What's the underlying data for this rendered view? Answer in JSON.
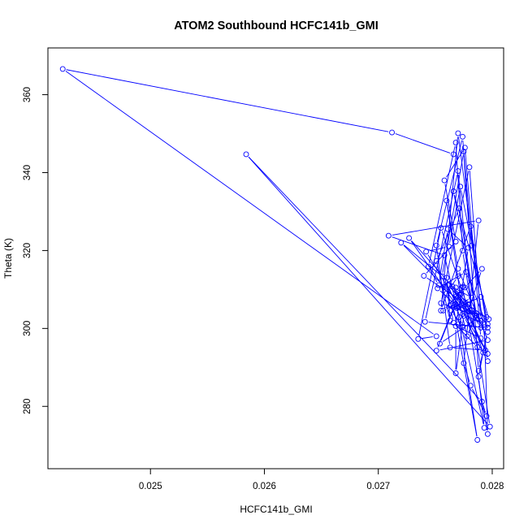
{
  "chart_data": {
    "type": "line",
    "title": "ATOM2 Southbound HCFC141b_GMI",
    "xlabel": "HCFC141b_GMI",
    "ylabel": "Theta (K)",
    "xlim": [
      0.0241,
      0.0281
    ],
    "ylim": [
      264,
      372
    ],
    "x_ticks": [
      0.025,
      0.026,
      0.027,
      0.028
    ],
    "x_tick_labels": [
      "0.025",
      "0.026",
      "0.027",
      "0.028"
    ],
    "y_ticks": [
      280,
      300,
      320,
      340,
      360
    ],
    "y_tick_labels": [
      "280",
      "300",
      "320",
      "340",
      "360"
    ],
    "grid": false,
    "series_color": "#0000ff",
    "marker": "open-circle",
    "series": [
      {
        "x": [
          0.02766,
          0.02712,
          0.02423,
          0.02751,
          0.02735,
          0.02755,
          0.02792,
          0.02788,
          0.02793,
          0.02771,
          0.02758,
          0.02709,
          0.02788,
          0.02775,
          0.02781,
          0.02795,
          0.02791,
          0.02584,
          0.02798,
          0.02774,
          0.02768,
          0.02744,
          0.02753,
          0.02761,
          0.02779,
          0.02771,
          0.02786,
          0.02771,
          0.02751,
          0.02763,
          0.0276,
          0.02763,
          0.02774,
          0.02796,
          0.02793,
          0.0272,
          0.02756,
          0.02775,
          0.02782,
          0.02795,
          0.02767,
          0.02757,
          0.02768,
          0.02776,
          0.02791,
          0.02779,
          0.02765,
          0.02796,
          0.02742,
          0.02762,
          0.02772,
          0.02796,
          0.02789,
          0.02754,
          0.0277,
          0.02778,
          0.02786,
          0.02766,
          0.02797,
          0.0274,
          0.02768,
          0.02758,
          0.02776,
          0.0279,
          0.02768,
          0.02768,
          0.02775,
          0.02796,
          0.0277,
          0.02755,
          0.02781,
          0.02796,
          0.02788,
          0.02774,
          0.02751,
          0.02763,
          0.02794,
          0.02771,
          0.02779,
          0.02727,
          0.02774,
          0.02793,
          0.0277,
          0.02762,
          0.02782,
          0.02766,
          0.02787,
          0.02769,
          0.0279,
          0.0277,
          0.02752,
          0.02777,
          0.02796,
          0.02741,
          0.0277,
          0.02782,
          0.02785,
          0.02755,
          0.0278,
          0.0279,
          0.02772,
          0.0276,
          0.0277,
          0.02796,
          0.02751,
          0.02773,
          0.02768,
          0.02787,
          0.02766,
          0.02764,
          0.02774,
          0.02768,
          0.02761,
          0.02776,
          0.0279,
          0.0277,
          0.0276,
          0.0277
        ],
        "y": [
          344.7,
          350.3,
          366.6,
          298.0,
          297.3,
          325.8,
          293.8,
          287.6,
          274.5,
          302.9,
          318.8,
          323.8,
          327.7,
          291.1,
          285.3,
          277.5,
          281.2,
          344.7,
          274.8,
          320.0,
          347.7,
          315.9,
          311.1,
          325.5,
          320.7,
          305.6,
          303.3,
          330.8,
          317.3,
          302.0,
          313.0,
          306.0,
          310.7,
          272.9,
          300.3,
          322.0,
          313.4,
          345.4,
          321.3,
          302.9,
          306.2,
          304.6,
          308.1,
          310.5,
          315.3,
          304.4,
          310.8,
          293.5,
          319.7,
          321.0,
          336.4,
          301.1,
          303.0,
          296.1,
          308.0,
          298.0,
          303.9,
          335.2,
          302.4,
          313.5,
          322.3,
          338.0,
          346.4,
          297.5,
          300.6,
          288.5,
          303.2,
          291.6,
          350.1,
          304.6,
          326.2,
          299.1,
          289.1,
          349.2,
          321.3,
          295.1,
          294.4,
          308.6,
          306.2,
          323.2,
          303.7,
          301.0,
          308.0,
          311.2,
          307.9,
          305.4,
          271.4,
          305.2,
          308.1,
          305.4,
          310.3,
          314.5,
          300.2,
          301.7,
          340.4,
          304.7,
          303.4,
          306.5,
          341.4,
          302.1,
          308.6,
          332.8,
          315.3,
          297.0,
          294.3,
          310.4,
          310.5,
          295.2,
          301.5,
          304.6,
          300.4,
          306.3,
          311.1,
          306.7,
          300.2,
          301.1,
          309.0,
          313.4
        ]
      }
    ]
  }
}
